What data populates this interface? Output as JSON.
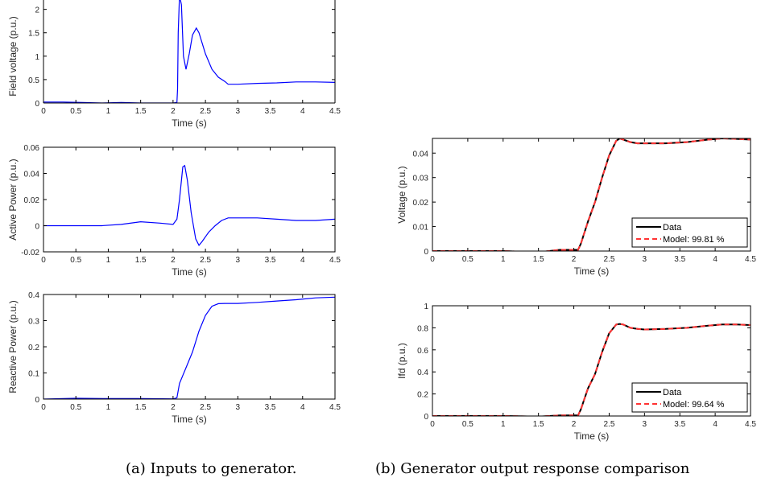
{
  "colors": {
    "input_line": "#0000ff",
    "data_line": "#000000",
    "model_line": "#ff3333"
  },
  "captions": {
    "left": "(a) Inputs to generator.",
    "right": "(b) Generator output response comparison"
  },
  "chart_data": [
    {
      "type": "line",
      "ylabel": "Field voltage (p.u.)",
      "xlabel": "Time (s)",
      "xlim": [
        0,
        4.5
      ],
      "ylim": [
        0,
        2.2
      ],
      "xticks": [
        "0",
        "0.5",
        "1",
        "1.5",
        "2",
        "2.5",
        "3",
        "3.5",
        "4",
        "4.5"
      ],
      "yticks": [
        0,
        0.5,
        1,
        1.5,
        2
      ],
      "ytick_labels": [
        "0",
        "0.5",
        "1",
        "1.5",
        "2"
      ],
      "series": [
        {
          "x": [
            0,
            0.3,
            0.6,
            0.9,
            1.2,
            1.5,
            1.8,
            2.0,
            2.06,
            2.07,
            2.08,
            2.1,
            2.13,
            2.16,
            2.2,
            2.25,
            2.3,
            2.36,
            2.4,
            2.5,
            2.6,
            2.7,
            2.8,
            2.85,
            3.0,
            3.3,
            3.6,
            3.9,
            4.2,
            4.5
          ],
          "y": [
            0.02,
            0.02,
            0.01,
            0.0,
            0.01,
            0.0,
            0.0,
            0.0,
            0.01,
            0.3,
            1.5,
            2.3,
            2.1,
            1.0,
            0.72,
            1.05,
            1.45,
            1.6,
            1.5,
            1.05,
            0.72,
            0.55,
            0.46,
            0.4,
            0.4,
            0.42,
            0.43,
            0.45,
            0.45,
            0.44
          ]
        }
      ]
    },
    {
      "type": "line",
      "ylabel": "Active Power (p.u.)",
      "xlabel": "Time (s)",
      "xlim": [
        0,
        4.5
      ],
      "ylim": [
        -0.02,
        0.06
      ],
      "xticks": [
        "0",
        "0.5",
        "1",
        "1.5",
        "2",
        "2.5",
        "3",
        "3.5",
        "4",
        "4.5"
      ],
      "yticks": [
        -0.02,
        0,
        0.02,
        0.04,
        0.06
      ],
      "ytick_labels": [
        "-0.02",
        "0",
        "0.02",
        "0.04",
        "0.06"
      ],
      "series": [
        {
          "x": [
            0,
            0.3,
            0.6,
            0.9,
            1.2,
            1.5,
            1.8,
            2.0,
            2.06,
            2.1,
            2.15,
            2.18,
            2.22,
            2.28,
            2.35,
            2.4,
            2.45,
            2.55,
            2.65,
            2.75,
            2.85,
            3.0,
            3.3,
            3.6,
            3.9,
            4.2,
            4.5
          ],
          "y": [
            0.0,
            0.0,
            0.0,
            0.0,
            0.001,
            0.003,
            0.002,
            0.001,
            0.005,
            0.02,
            0.045,
            0.046,
            0.035,
            0.01,
            -0.01,
            -0.015,
            -0.012,
            -0.005,
            0.0,
            0.004,
            0.006,
            0.006,
            0.006,
            0.005,
            0.004,
            0.004,
            0.005
          ]
        }
      ]
    },
    {
      "type": "line",
      "ylabel": "Reactive Power (p.u.)",
      "xlabel": "Time (s)",
      "xlim": [
        0,
        4.5
      ],
      "ylim": [
        0,
        0.4
      ],
      "xticks": [
        "0",
        "0.5",
        "1",
        "1.5",
        "2",
        "2.5",
        "3",
        "3.5",
        "4",
        "4.5"
      ],
      "yticks": [
        0,
        0.1,
        0.2,
        0.3,
        0.4
      ],
      "ytick_labels": [
        "0",
        "0.1",
        "0.2",
        "0.3",
        "0.4"
      ],
      "series": [
        {
          "x": [
            0,
            0.5,
            1.0,
            1.5,
            2.0,
            2.06,
            2.1,
            2.2,
            2.3,
            2.4,
            2.5,
            2.6,
            2.7,
            2.8,
            3.0,
            3.3,
            3.6,
            3.9,
            4.2,
            4.5
          ],
          "y": [
            0.0,
            0.003,
            0.002,
            0.002,
            0.001,
            0.005,
            0.06,
            0.12,
            0.18,
            0.26,
            0.32,
            0.355,
            0.365,
            0.366,
            0.366,
            0.37,
            0.375,
            0.38,
            0.387,
            0.39
          ]
        }
      ]
    },
    {
      "type": "line",
      "ylabel": "Voltage (p.u.)",
      "xlabel": "Time (s)",
      "xlim": [
        0,
        4.5
      ],
      "ylim": [
        0,
        0.046
      ],
      "xticks": [
        "0",
        "0.5",
        "1",
        "1.5",
        "2",
        "2.5",
        "3",
        "3.5",
        "4",
        "4.5"
      ],
      "yticks": [
        0,
        0.01,
        0.02,
        0.03,
        0.04
      ],
      "ytick_labels": [
        "0",
        "0.01",
        "0.02",
        "0.03",
        "0.04"
      ],
      "legend": {
        "placement": "bottom-right",
        "entries": [
          "Data",
          "Model: 99.81 %"
        ]
      },
      "series": [
        {
          "name": "Data",
          "x": [
            0,
            0.5,
            1.0,
            1.5,
            1.8,
            2.0,
            2.06,
            2.1,
            2.2,
            2.3,
            2.4,
            2.5,
            2.6,
            2.65,
            2.7,
            2.8,
            2.9,
            3.0,
            3.3,
            3.6,
            3.9,
            4.1,
            4.3,
            4.5
          ],
          "y": [
            0.0,
            0.0,
            0.0,
            -0.0005,
            0.0005,
            0.0005,
            0.0005,
            0.003,
            0.012,
            0.02,
            0.03,
            0.039,
            0.045,
            0.046,
            0.0455,
            0.0445,
            0.044,
            0.044,
            0.044,
            0.0445,
            0.0455,
            0.046,
            0.0458,
            0.0455
          ]
        },
        {
          "name": "Model: 99.81 %",
          "x": [
            0,
            0.5,
            1.0,
            1.5,
            1.8,
            2.0,
            2.06,
            2.1,
            2.2,
            2.3,
            2.4,
            2.5,
            2.6,
            2.65,
            2.7,
            2.8,
            2.9,
            3.0,
            3.3,
            3.6,
            3.9,
            4.1,
            4.3,
            4.5
          ],
          "y": [
            0.0,
            0.0,
            0.0,
            -0.0005,
            0.0005,
            0.0005,
            0.0005,
            0.003,
            0.012,
            0.02,
            0.03,
            0.039,
            0.045,
            0.046,
            0.0455,
            0.0445,
            0.044,
            0.044,
            0.044,
            0.0445,
            0.0455,
            0.046,
            0.0458,
            0.0455
          ]
        }
      ]
    },
    {
      "type": "line",
      "ylabel": "Ifd (p.u.)",
      "xlabel": "Time (s)",
      "xlim": [
        0,
        4.5
      ],
      "ylim": [
        0,
        1
      ],
      "xticks": [
        "0",
        "0.5",
        "1",
        "1.5",
        "2",
        "2.5",
        "3",
        "3.5",
        "4",
        "4.5"
      ],
      "yticks": [
        0,
        0.2,
        0.4,
        0.6,
        0.8,
        1
      ],
      "ytick_labels": [
        "0",
        "0.2",
        "0.4",
        "0.6",
        "0.8",
        "1"
      ],
      "legend": {
        "placement": "bottom-right",
        "entries": [
          "Data",
          "Model: 99.64 %"
        ]
      },
      "series": [
        {
          "name": "Data",
          "x": [
            0,
            0.5,
            1.0,
            1.5,
            1.8,
            2.0,
            2.06,
            2.1,
            2.2,
            2.3,
            2.4,
            2.5,
            2.6,
            2.65,
            2.7,
            2.8,
            2.9,
            3.0,
            3.3,
            3.6,
            3.9,
            4.1,
            4.3,
            4.5
          ],
          "y": [
            0.0,
            0.0,
            0.0,
            -0.005,
            0.005,
            0.005,
            0.005,
            0.06,
            0.25,
            0.38,
            0.58,
            0.75,
            0.83,
            0.835,
            0.83,
            0.8,
            0.79,
            0.785,
            0.79,
            0.8,
            0.82,
            0.83,
            0.83,
            0.825
          ]
        },
        {
          "name": "Model: 99.64 %",
          "x": [
            0,
            0.5,
            1.0,
            1.5,
            1.8,
            2.0,
            2.06,
            2.1,
            2.2,
            2.3,
            2.4,
            2.5,
            2.6,
            2.65,
            2.7,
            2.8,
            2.9,
            3.0,
            3.3,
            3.6,
            3.9,
            4.1,
            4.3,
            4.5
          ],
          "y": [
            0.0,
            0.0,
            0.0,
            -0.005,
            0.005,
            0.005,
            0.005,
            0.06,
            0.25,
            0.38,
            0.58,
            0.75,
            0.83,
            0.835,
            0.83,
            0.8,
            0.79,
            0.785,
            0.79,
            0.8,
            0.82,
            0.83,
            0.83,
            0.825
          ]
        }
      ]
    }
  ]
}
